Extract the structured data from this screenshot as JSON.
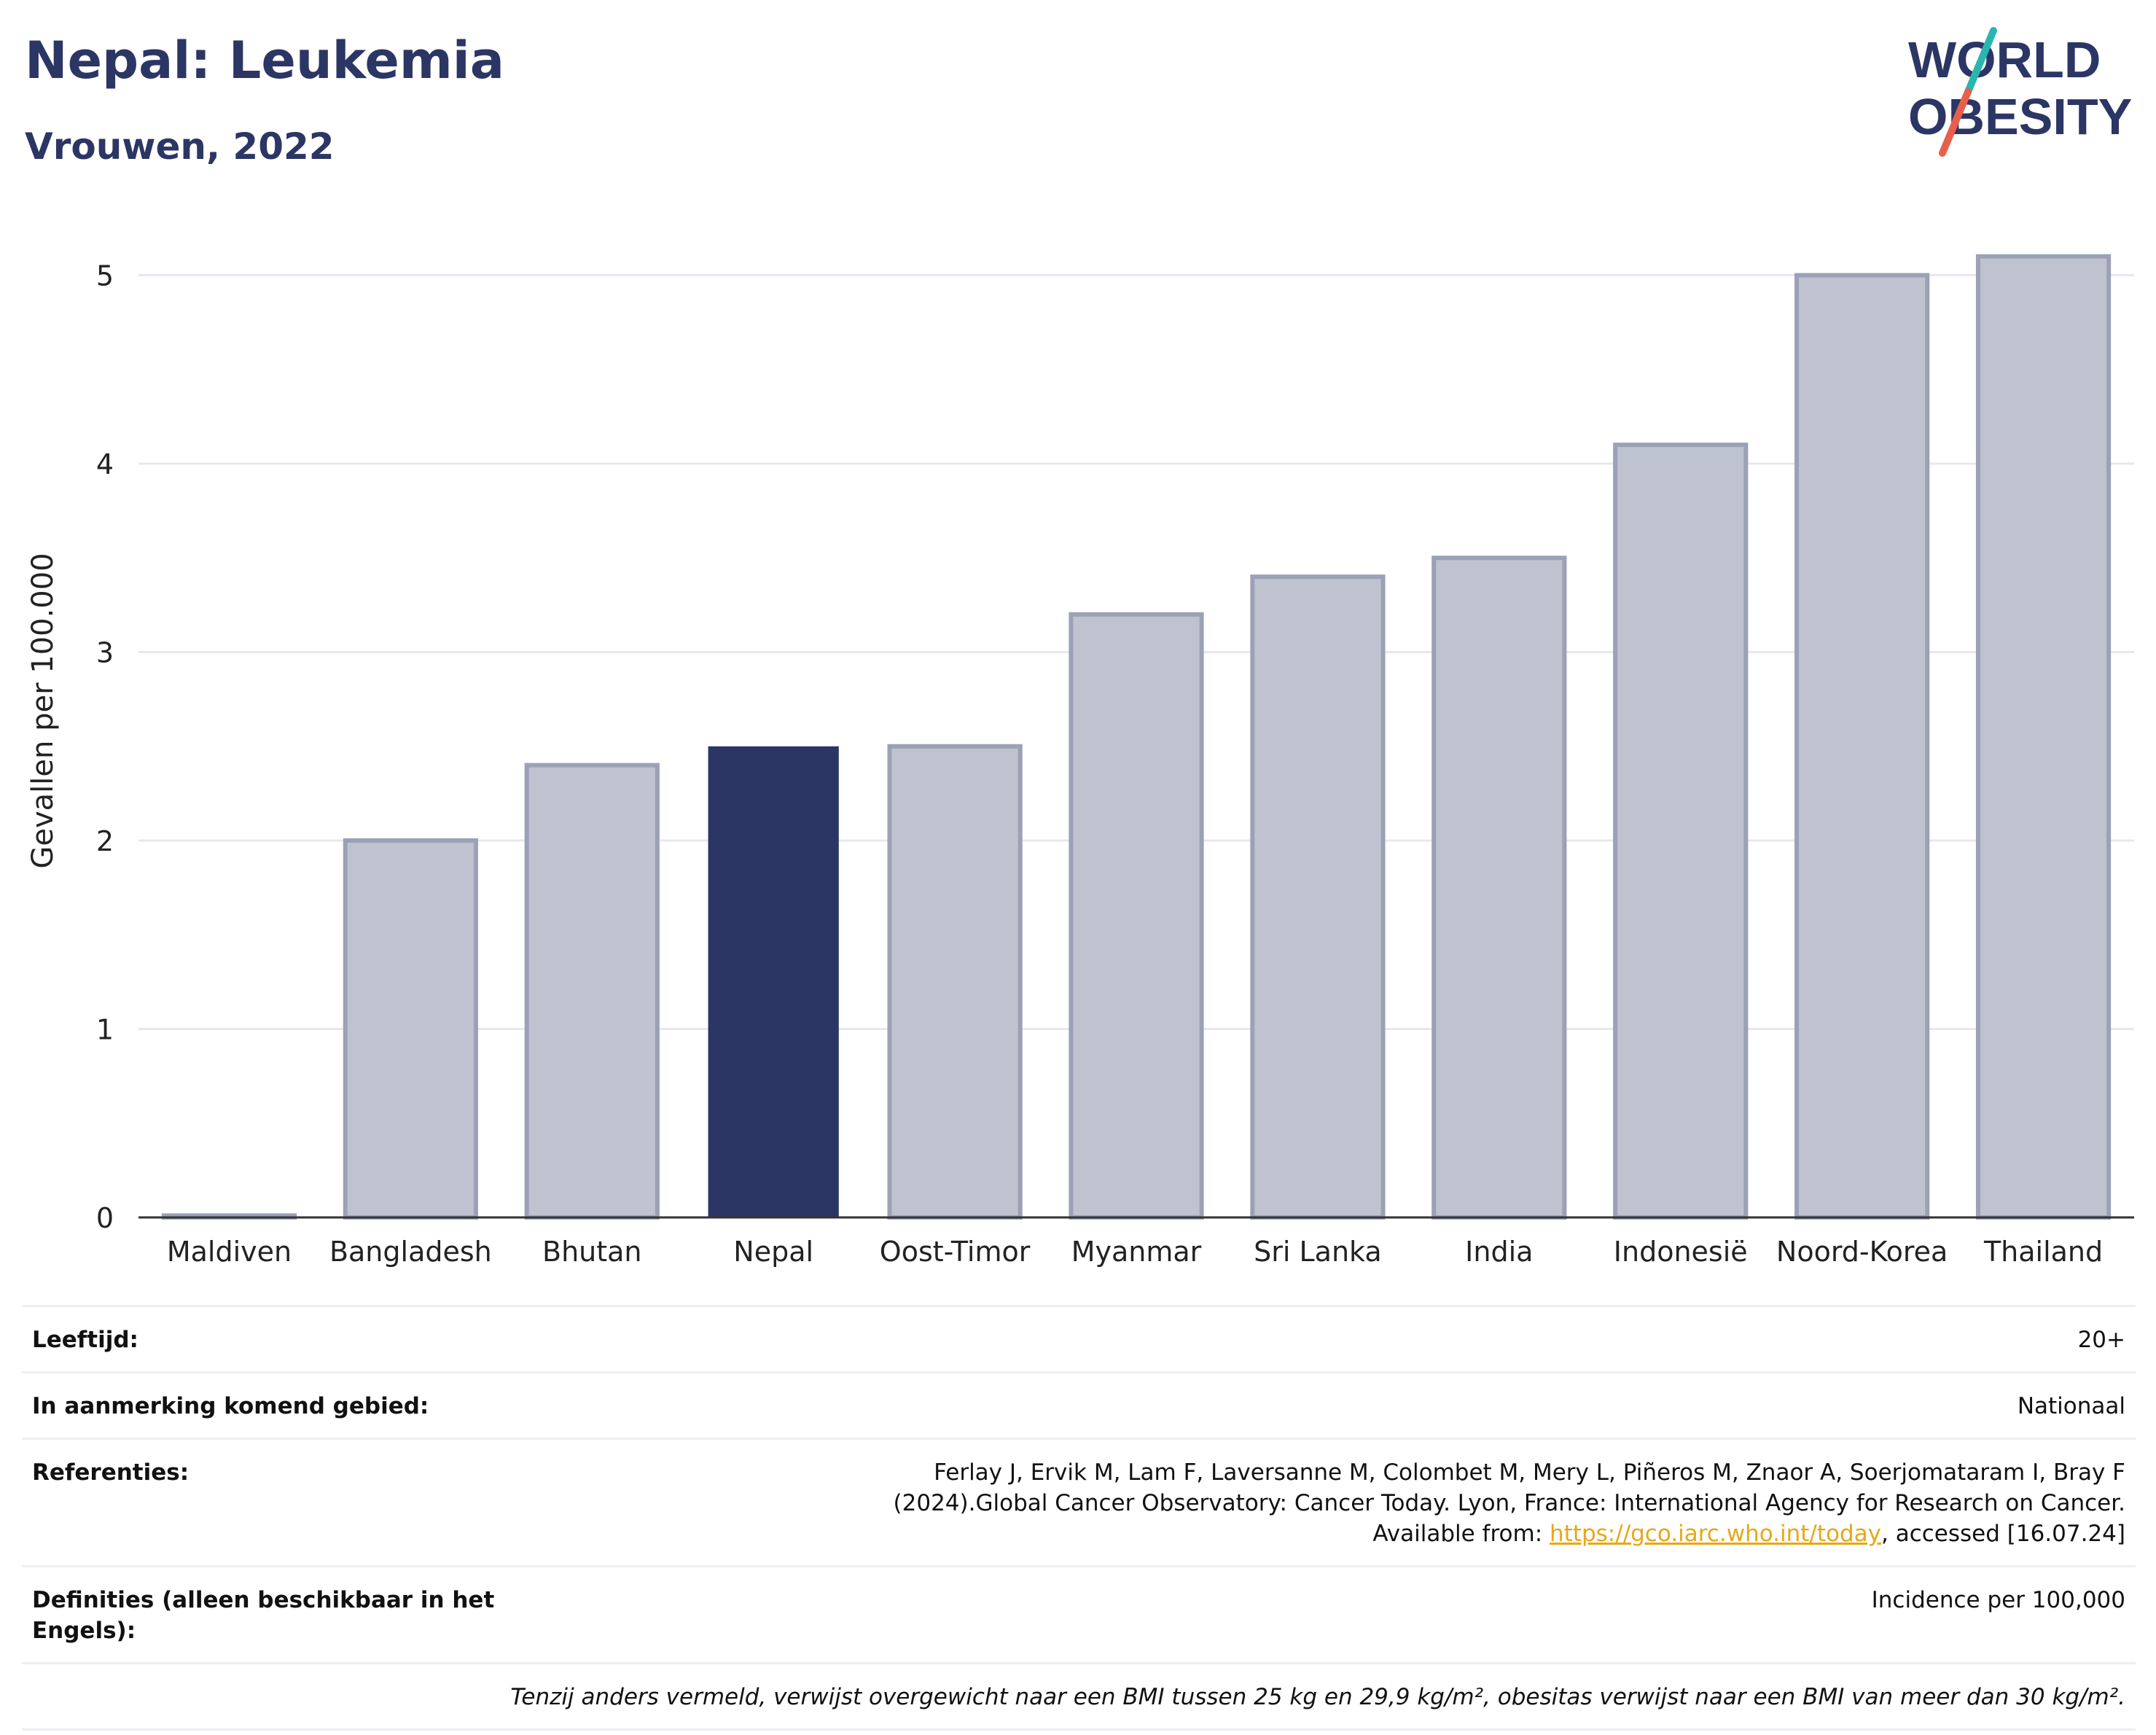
{
  "header": {
    "title": "Nepal: Leukemia",
    "subtitle": "Vrouwen, 2022"
  },
  "logo": {
    "line1": "WORLD",
    "line2": "OBESITY",
    "colors": {
      "text": "#2b3664",
      "slash_top": "#2bb5b0",
      "slash_bottom": "#e8604c"
    }
  },
  "chart_data": {
    "type": "bar",
    "categories": [
      "Maldiven",
      "Bangladesh",
      "Bhutan",
      "Nepal",
      "Oost-Timor",
      "Myanmar",
      "Sri Lanka",
      "India",
      "Indonesië",
      "Noord-Korea",
      "Thailand"
    ],
    "values": [
      0.01,
      2.0,
      2.4,
      2.5,
      2.5,
      3.2,
      3.4,
      3.5,
      4.1,
      5.0,
      5.1
    ],
    "highlight": "Nepal",
    "ylabel": "Gevallen per 100.000",
    "xlabel": "",
    "ylim": [
      0,
      5.3
    ],
    "yticks": [
      0,
      1,
      2,
      3,
      4,
      5
    ],
    "grid": true,
    "colors": {
      "bar": "#bfc3d0",
      "bar_border": "#9ba1b6",
      "highlight": "#2b3664",
      "grid": "#e6e8ee",
      "axis": "#333333"
    }
  },
  "info": {
    "rows": [
      {
        "label": "Leeftijd:",
        "value": "20+"
      },
      {
        "label": "In aanmerking komend gebied:",
        "value": "Nationaal"
      },
      {
        "label": "Referenties:",
        "value_before": "Ferlay J, Ervik M, Lam F, Laversanne M, Colombet M, Mery L, Piñeros M, Znaor A, Soerjomataram I, Bray F (2024).Global Cancer Observatory: Cancer Today. Lyon, France: International Agency for Research on Cancer. Available from: ",
        "link": "https://gco.iarc.who.int/today",
        "value_after": ", accessed [16.07.24]"
      },
      {
        "label": "Definities (alleen beschikbaar in het Engels):",
        "value": "Incidence per 100,000"
      }
    ],
    "note": "Tenzij anders vermeld, verwijst overgewicht naar een BMI tussen 25 kg en 29,9 kg/m², obesitas verwijst naar een BMI van meer dan 30 kg/m²."
  }
}
